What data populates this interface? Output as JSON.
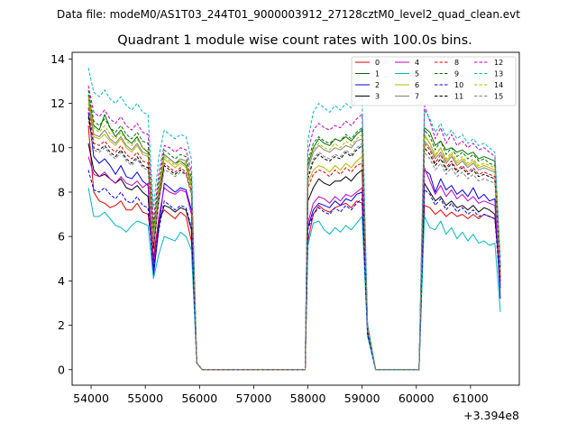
{
  "suptitle": "Data file: modeM0/AS1T03_244T01_9000003912_27128cztM0_level2_quad_clean.evt",
  "chart_data": {
    "type": "line",
    "title": "Quadrant 1 module wise count rates with 100.0s bins.",
    "xlabel": "",
    "ylabel": "",
    "x_offset_label": "+3.394e8",
    "xlim": [
      53650,
      61900
    ],
    "ylim": [
      -0.7,
      14.3
    ],
    "xticks": [
      54000,
      55000,
      56000,
      57000,
      58000,
      59000,
      60000,
      61000
    ],
    "yticks": [
      0,
      2,
      4,
      6,
      8,
      10,
      12,
      14
    ],
    "xtick_labels": [
      "54000",
      "55000",
      "56000",
      "57000",
      "58000",
      "59000",
      "60000",
      "61000"
    ],
    "ytick_labels": [
      "0",
      "2",
      "4",
      "6",
      "8",
      "10",
      "12",
      "14"
    ],
    "legend_position": "upper right",
    "segments": [
      {
        "x_start": 53950,
        "x_end": 55950,
        "step": 100
      },
      {
        "x_start": 58000,
        "x_end": 59050,
        "step": 100
      },
      {
        "x_start": 60150,
        "x_end": 61550,
        "step": 100
      }
    ],
    "zero_x": [
      56050,
      56550,
      57050,
      57550,
      57950,
      59250,
      59650,
      60050
    ],
    "series": [
      {
        "name": "0",
        "color": "#e00000",
        "dash": "solid",
        "seg": [
          [
            11.0,
            8.0,
            7.6,
            7.5,
            7.3,
            7.4,
            7.6,
            7.2,
            7.2,
            7.5,
            7.1,
            7.0,
            5.1,
            6.8,
            7.2,
            7.0,
            6.8,
            7.1,
            6.9,
            5.8,
            0.3
          ],
          [
            5.8,
            7.0,
            7.4,
            7.2,
            7.1,
            7.3,
            7.4,
            7.5,
            7.3,
            7.6,
            7.5,
            1.6
          ],
          [
            7.4,
            7.3,
            7.0,
            7.2,
            6.9,
            7.1,
            6.9,
            7.0,
            6.8,
            7.0,
            6.8,
            7.0,
            6.9,
            6.8,
            4.2
          ]
        ]
      },
      {
        "name": "1",
        "color": "#007000",
        "dash": "solid",
        "seg": [
          [
            12.4,
            11.0,
            10.8,
            11.5,
            10.9,
            10.5,
            10.8,
            10.4,
            10.2,
            10.5,
            10.0,
            9.8,
            6.2,
            8.2,
            9.7,
            9.5,
            9.3,
            9.4,
            9.2,
            8.3,
            0.3
          ],
          [
            9.2,
            10.0,
            10.4,
            10.2,
            10.1,
            10.4,
            10.3,
            10.5,
            10.3,
            10.6,
            10.8,
            1.9
          ],
          [
            10.9,
            10.7,
            10.1,
            10.3,
            9.9,
            10.0,
            9.8,
            9.9,
            9.7,
            9.8,
            9.5,
            9.6,
            9.5,
            9.4,
            4.6
          ]
        ]
      },
      {
        "name": "2",
        "color": "#0000e0",
        "dash": "solid",
        "seg": [
          [
            11.6,
            9.6,
            9.3,
            9.5,
            9.2,
            8.8,
            9.2,
            8.7,
            8.6,
            8.9,
            8.5,
            8.3,
            4.2,
            6.4,
            8.4,
            8.2,
            8.0,
            8.2,
            8.1,
            7.2,
            0.3
          ],
          [
            6.4,
            7.2,
            7.5,
            7.4,
            7.3,
            7.6,
            7.4,
            7.7,
            7.6,
            7.9,
            8.0,
            1.7
          ],
          [
            9.0,
            8.8,
            8.0,
            8.6,
            8.1,
            8.3,
            7.9,
            8.1,
            7.8,
            8.2,
            7.7,
            7.9,
            7.6,
            7.7,
            3.2
          ]
        ]
      },
      {
        "name": "3",
        "color": "#000000",
        "dash": "solid",
        "seg": [
          [
            10.2,
            9.0,
            8.7,
            8.8,
            8.6,
            8.4,
            8.6,
            8.2,
            8.1,
            8.3,
            8.0,
            7.8,
            4.8,
            6.6,
            7.4,
            7.3,
            7.1,
            7.3,
            7.2,
            6.3,
            0.3
          ],
          [
            7.6,
            8.2,
            8.6,
            8.4,
            8.3,
            8.5,
            8.5,
            8.7,
            8.5,
            8.8,
            9.0,
            1.8
          ],
          [
            8.4,
            8.0,
            7.6,
            7.8,
            7.4,
            7.6,
            7.3,
            7.4,
            7.2,
            7.4,
            7.1,
            7.3,
            7.2,
            7.0,
            4.0
          ]
        ]
      },
      {
        "name": "4",
        "color": "#c000c0",
        "dash": "solid",
        "seg": [
          [
            9.6,
            8.8,
            8.7,
            8.9,
            8.6,
            8.4,
            8.7,
            8.4,
            8.3,
            8.5,
            8.2,
            8.4,
            4.6,
            6.9,
            8.2,
            8.0,
            7.9,
            8.1,
            8.0,
            7.0,
            0.3
          ],
          [
            6.6,
            7.5,
            7.8,
            7.7,
            7.5,
            7.8,
            7.6,
            7.9,
            7.8,
            8.0,
            8.2,
            1.7
          ],
          [
            9.1,
            8.5,
            7.9,
            8.3,
            7.8,
            8.1,
            7.7,
            7.9,
            7.6,
            7.8,
            7.5,
            7.6,
            7.5,
            7.4,
            3.8
          ]
        ]
      },
      {
        "name": "5",
        "color": "#00b8c0",
        "dash": "solid",
        "seg": [
          [
            8.2,
            6.9,
            6.9,
            7.1,
            6.8,
            6.5,
            6.4,
            6.2,
            6.5,
            6.7,
            6.6,
            6.5,
            4.1,
            5.2,
            6.0,
            5.9,
            5.8,
            6.2,
            6.0,
            5.4,
            0.3
          ],
          [
            5.6,
            6.6,
            6.7,
            6.3,
            6.1,
            6.4,
            6.2,
            6.5,
            6.3,
            6.6,
            6.9,
            1.5
          ],
          [
            6.9,
            6.4,
            6.3,
            6.7,
            6.1,
            6.4,
            5.9,
            6.2,
            5.8,
            6.1,
            5.7,
            5.8,
            5.6,
            5.7,
            2.6
          ]
        ]
      },
      {
        "name": "6",
        "color": "#b8b800",
        "dash": "solid",
        "seg": [
          [
            12.0,
            10.5,
            10.4,
            10.6,
            10.3,
            10.1,
            10.4,
            10.0,
            9.8,
            10.1,
            9.7,
            9.6,
            5.6,
            7.9,
            9.5,
            9.3,
            9.1,
            9.3,
            9.1,
            8.2,
            0.3
          ],
          [
            8.4,
            9.0,
            9.2,
            9.1,
            8.9,
            9.2,
            9.0,
            9.3,
            9.1,
            9.4,
            9.6,
            1.8
          ],
          [
            10.6,
            10.2,
            9.6,
            10.0,
            9.4,
            9.7,
            9.3,
            9.5,
            9.2,
            9.4,
            9.1,
            9.2,
            9.1,
            9.0,
            4.3
          ]
        ]
      },
      {
        "name": "7",
        "color": "#808080",
        "dash": "solid",
        "seg": [
          [
            12.2,
            10.6,
            10.5,
            10.8,
            10.4,
            10.2,
            10.5,
            10.1,
            9.9,
            10.2,
            9.8,
            9.7,
            5.9,
            8.1,
            9.7,
            9.5,
            9.3,
            9.5,
            9.4,
            8.4,
            0.3
          ],
          [
            9.0,
            9.8,
            10.1,
            9.9,
            9.8,
            10.0,
            9.9,
            10.1,
            10.0,
            10.3,
            10.4,
            1.9
          ],
          [
            10.3,
            10.0,
            9.5,
            9.8,
            9.3,
            9.6,
            9.2,
            9.4,
            9.1,
            9.3,
            9.0,
            9.1,
            9.0,
            8.9,
            4.4
          ]
        ]
      },
      {
        "name": "8",
        "color": "#e00000",
        "dash": "dashed",
        "seg": [
          [
            11.8,
            10.2,
            10.1,
            10.3,
            10.0,
            9.8,
            10.1,
            9.7,
            9.5,
            9.8,
            9.4,
            9.3,
            5.4,
            7.6,
            9.3,
            9.1,
            8.9,
            9.1,
            8.9,
            8.0,
            0.3
          ],
          [
            8.2,
            8.8,
            9.0,
            8.9,
            8.7,
            9.0,
            8.8,
            9.1,
            8.9,
            9.2,
            9.3,
            1.7
          ],
          [
            10.2,
            9.9,
            9.3,
            9.7,
            9.1,
            9.4,
            9.0,
            9.2,
            8.9,
            9.1,
            8.8,
            8.9,
            8.8,
            8.7,
            4.1
          ]
        ]
      },
      {
        "name": "9",
        "color": "#007000",
        "dash": "dashed",
        "seg": [
          [
            12.6,
            11.2,
            11.0,
            11.3,
            10.9,
            10.7,
            11.0,
            10.6,
            10.4,
            10.7,
            10.3,
            10.2,
            6.4,
            8.5,
            9.9,
            9.7,
            9.5,
            9.7,
            9.6,
            8.6,
            0.3
          ],
          [
            9.4,
            10.2,
            10.5,
            10.3,
            10.2,
            10.4,
            10.3,
            10.6,
            10.4,
            10.7,
            10.9,
            1.9
          ],
          [
            10.8,
            10.5,
            9.9,
            10.3,
            9.7,
            10.0,
            9.6,
            9.8,
            9.5,
            9.7,
            9.4,
            9.5,
            9.3,
            9.2,
            4.5
          ]
        ]
      },
      {
        "name": "10",
        "color": "#0000e0",
        "dash": "dashed",
        "seg": [
          [
            9.0,
            8.1,
            8.0,
            8.2,
            7.9,
            7.7,
            8.0,
            7.6,
            7.5,
            7.8,
            7.4,
            7.3,
            4.5,
            6.3,
            7.6,
            7.4,
            7.2,
            7.4,
            7.3,
            6.4,
            0.3
          ],
          [
            6.3,
            7.0,
            7.3,
            7.1,
            7.0,
            7.3,
            7.1,
            7.4,
            7.2,
            7.5,
            7.7,
            1.6
          ],
          [
            8.1,
            7.9,
            7.4,
            7.7,
            7.2,
            7.5,
            7.1,
            7.3,
            7.0,
            7.2,
            6.9,
            7.0,
            6.9,
            6.8,
            3.6
          ]
        ]
      },
      {
        "name": "11",
        "color": "#000000",
        "dash": "dashed",
        "seg": [
          [
            11.4,
            10.0,
            9.9,
            10.1,
            9.8,
            9.6,
            9.9,
            9.5,
            9.3,
            9.6,
            9.2,
            9.1,
            5.5,
            7.7,
            9.2,
            9.0,
            8.8,
            9.0,
            8.8,
            7.9,
            0.3
          ],
          [
            8.6,
            9.4,
            9.7,
            9.5,
            9.4,
            9.6,
            9.5,
            9.8,
            9.6,
            9.9,
            10.1,
            1.8
          ],
          [
            10.0,
            9.7,
            9.2,
            9.5,
            9.0,
            9.3,
            8.9,
            9.1,
            8.8,
            9.0,
            8.7,
            8.8,
            8.7,
            8.6,
            4.2
          ]
        ]
      },
      {
        "name": "12",
        "color": "#c000c0",
        "dash": "dashed",
        "seg": [
          [
            12.8,
            11.6,
            11.4,
            11.7,
            11.3,
            11.1,
            11.4,
            11.0,
            10.8,
            11.1,
            10.7,
            10.6,
            6.7,
            8.9,
            10.1,
            10.0,
            9.8,
            10.0,
            9.9,
            8.9,
            0.3
          ],
          [
            9.8,
            10.8,
            11.1,
            10.9,
            10.8,
            11.0,
            10.9,
            11.2,
            11.0,
            11.3,
            11.5,
            2.0
          ],
          [
            11.9,
            11.2,
            10.4,
            10.9,
            10.2,
            10.6,
            10.1,
            10.3,
            10.0,
            10.2,
            9.9,
            10.0,
            9.8,
            9.6,
            4.7
          ]
        ]
      },
      {
        "name": "13",
        "color": "#00b8c0",
        "dash": "dashed",
        "seg": [
          [
            13.6,
            12.5,
            12.3,
            12.6,
            12.2,
            12.0,
            12.3,
            11.9,
            11.7,
            12.0,
            11.6,
            11.5,
            7.3,
            9.6,
            10.8,
            10.6,
            10.4,
            10.6,
            10.5,
            9.5,
            0.3
          ],
          [
            10.3,
            11.6,
            12.0,
            11.8,
            11.6,
            11.9,
            11.7,
            12.0,
            11.8,
            12.1,
            12.3,
            2.1
          ],
          [
            11.7,
            11.3,
            10.7,
            11.1,
            10.5,
            10.8,
            10.4,
            10.6,
            10.2,
            10.4,
            10.1,
            10.2,
            10.0,
            9.8,
            5.0
          ]
        ]
      },
      {
        "name": "14",
        "color": "#b8b800",
        "dash": "dashed",
        "seg": [
          [
            12.3,
            10.9,
            10.7,
            11.0,
            10.6,
            10.4,
            10.7,
            10.3,
            10.1,
            10.4,
            10.0,
            9.9,
            6.0,
            8.3,
            9.6,
            9.4,
            9.2,
            9.4,
            9.3,
            8.4,
            0.3
          ],
          [
            9.1,
            9.9,
            10.2,
            10.0,
            9.9,
            10.2,
            10.0,
            10.3,
            10.1,
            10.4,
            10.6,
            1.9
          ],
          [
            10.5,
            10.2,
            9.7,
            10.0,
            9.5,
            9.8,
            9.4,
            9.6,
            9.3,
            9.5,
            9.2,
            9.3,
            9.2,
            9.1,
            4.4
          ]
        ]
      },
      {
        "name": "15",
        "color": "#808080",
        "dash": "dashed",
        "seg": [
          [
            11.2,
            9.9,
            9.8,
            10.0,
            9.7,
            9.5,
            9.8,
            9.4,
            9.2,
            9.5,
            9.1,
            9.0,
            5.7,
            7.6,
            9.0,
            8.9,
            8.7,
            8.9,
            8.8,
            7.9,
            0.3
          ],
          [
            8.8,
            9.5,
            9.8,
            9.6,
            9.5,
            9.7,
            9.6,
            9.9,
            9.7,
            10.0,
            10.2,
            1.8
          ],
          [
            9.8,
            9.5,
            9.0,
            9.3,
            8.8,
            9.1,
            8.7,
            8.9,
            8.6,
            8.8,
            8.5,
            8.6,
            8.5,
            8.4,
            4.1
          ]
        ]
      }
    ]
  }
}
